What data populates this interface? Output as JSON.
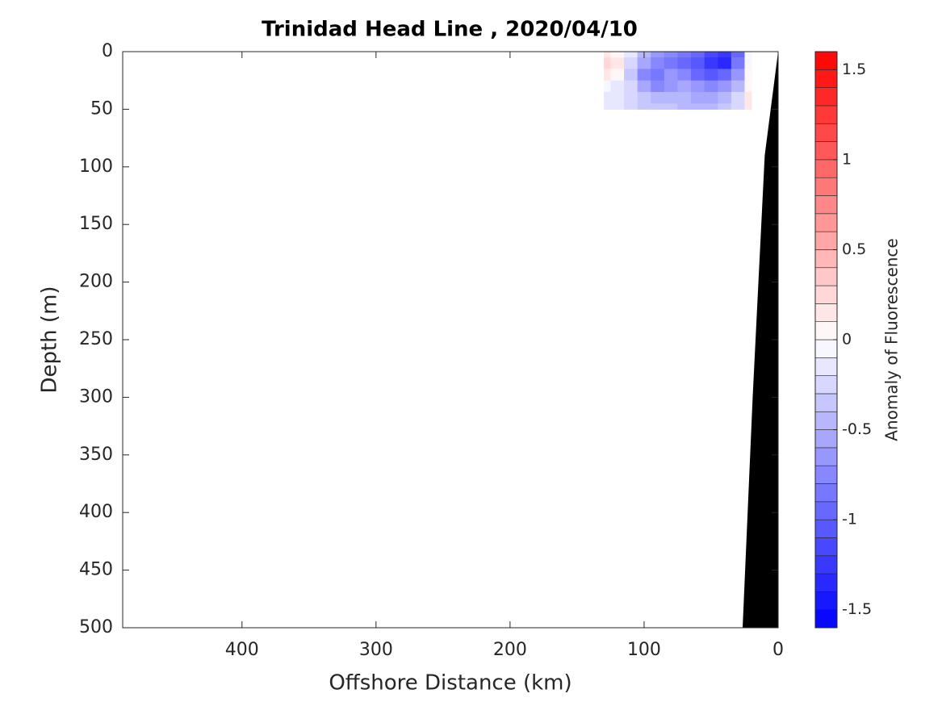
{
  "chart_data": {
    "type": "contourf",
    "title": "Trinidad Head Line , 2020/04/10",
    "x_label": "Offshore Distance (km)",
    "y_label": "Depth (m)",
    "colorbar_label": "Anomaly of Fluorescence",
    "xlim": [
      489,
      0
    ],
    "ylim": [
      0,
      500
    ],
    "y_reversed": true,
    "xticks": [
      400,
      300,
      200,
      100,
      0
    ],
    "yticks": [
      0,
      50,
      100,
      150,
      200,
      250,
      300,
      350,
      400,
      450,
      500
    ],
    "x": [
      130,
      120,
      110,
      100,
      90,
      80,
      70,
      60,
      50,
      40,
      30,
      20
    ],
    "depth": [
      0,
      10,
      20,
      30,
      40,
      50
    ],
    "values": [
      [
        0.1,
        0.05,
        -0.2,
        -0.5,
        -0.7,
        -0.8,
        -0.9,
        -1.0,
        -1.2,
        -1.3,
        -1.0,
        -0.1
      ],
      [
        0.2,
        0.1,
        -0.3,
        -0.6,
        -0.8,
        -0.9,
        -1.0,
        -1.1,
        -1.3,
        -1.4,
        -0.9,
        -0.1
      ],
      [
        0.15,
        0.05,
        -0.4,
        -0.8,
        -0.9,
        -0.7,
        -0.8,
        -1.0,
        -1.1,
        -1.0,
        -0.7,
        0.0
      ],
      [
        -0.1,
        -0.2,
        -0.3,
        -0.6,
        -0.8,
        -0.7,
        -0.6,
        -0.7,
        -0.8,
        -0.7,
        -0.5,
        0.05
      ],
      [
        -0.2,
        -0.2,
        -0.3,
        -0.4,
        -0.5,
        -0.5,
        -0.5,
        -0.6,
        -0.6,
        -0.5,
        -0.3,
        0.1
      ],
      [
        -0.2,
        -0.2,
        -0.3,
        -0.4,
        -0.4,
        -0.4,
        -0.5,
        -0.5,
        -0.5,
        -0.4,
        -0.3,
        0.1
      ]
    ],
    "contour_step": 0.1,
    "clim": [
      -1.6,
      1.6
    ],
    "cticks": [
      -1.5,
      -1,
      -0.5,
      0,
      0.5,
      1,
      1.5
    ],
    "colormap": [
      "#0000ff",
      "#ffffff",
      "#ff0000"
    ],
    "bathymetry": {
      "color": "#000000",
      "x": [
        0,
        10,
        19,
        26.5
      ],
      "depth": [
        0,
        90,
        300,
        500
      ]
    }
  }
}
